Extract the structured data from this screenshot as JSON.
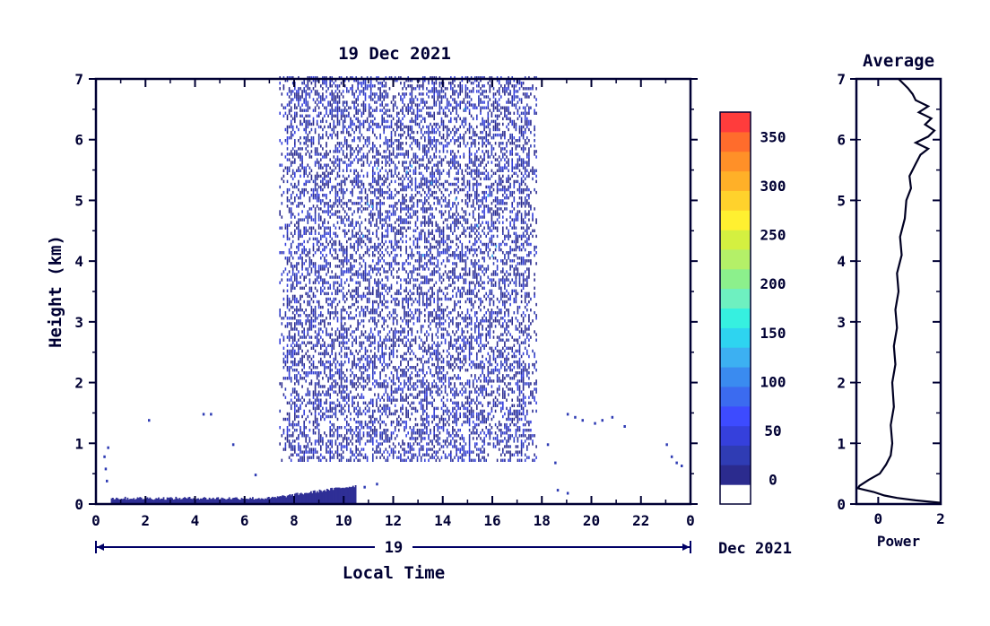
{
  "chart_data": [
    {
      "type": "heatmap",
      "title": "19 Dec 2021",
      "xlabel": "Local Time",
      "ylabel": "Height (km)",
      "xlim": [
        0,
        24
      ],
      "ylim": [
        0,
        7
      ],
      "x_ticks": [
        "0",
        "2",
        "4",
        "6",
        "8",
        "10",
        "12",
        "14",
        "16",
        "18",
        "20",
        "22",
        "0"
      ],
      "y_ticks": [
        "0",
        "1",
        "2",
        "3",
        "4",
        "5",
        "6",
        "7"
      ],
      "date_bar": {
        "day": "19",
        "month_year": "Dec 2021"
      },
      "colorbar": {
        "ticks": [
          "0",
          "50",
          "100",
          "150",
          "200",
          "250",
          "300",
          "350"
        ],
        "min": -25,
        "max": 375,
        "colors": [
          "#ffffff",
          "#2b2b8e",
          "#2f3cb4",
          "#3540dc",
          "#3d4bff",
          "#3b6bf0",
          "#3a8bf0",
          "#3cb0f2",
          "#2ed4f0",
          "#36f0e0",
          "#6ef0c0",
          "#8cf08c",
          "#b4f068",
          "#d4f040",
          "#fff030",
          "#ffd22c",
          "#ffb028",
          "#ff9028",
          "#ff6c2c",
          "#ff3c3c"
        ]
      },
      "regions": [
        {
          "desc": "daytime echo",
          "x_range": [
            7.4,
            17.8
          ],
          "y_range": [
            0.7,
            7.0
          ],
          "value_range": [
            0,
            30
          ]
        },
        {
          "desc": "surface layer",
          "x_range": [
            0.6,
            10.5
          ],
          "y_range": [
            0.0,
            0.25
          ],
          "value_range": [
            0,
            20
          ]
        }
      ]
    },
    {
      "type": "line",
      "title": "Average",
      "xlabel": "Power",
      "ylabel": "",
      "xlim": [
        -0.7,
        2
      ],
      "ylim": [
        0,
        7
      ],
      "x_ticks": [
        "0",
        "2"
      ],
      "y_ticks": [
        "0",
        "1",
        "2",
        "3",
        "4",
        "5",
        "6",
        "7"
      ],
      "series": [
        {
          "x": [
            2.0,
            1.2,
            0.6,
            0.2,
            -0.15,
            -0.5,
            -0.65,
            -0.6,
            -0.3,
            0.05,
            0.25,
            0.4,
            0.45,
            0.4,
            0.5,
            0.45,
            0.55,
            0.5,
            0.6,
            0.55,
            0.65,
            0.6,
            0.75,
            0.7,
            0.85,
            0.9,
            1.05,
            1.0,
            1.2,
            1.35,
            1.6,
            1.2,
            1.6,
            1.8,
            1.5,
            1.7,
            1.3,
            1.6,
            1.2,
            1.1,
            0.95,
            0.75,
            0.65
          ],
          "y": [
            0.02,
            0.06,
            0.1,
            0.14,
            0.2,
            0.24,
            0.26,
            0.3,
            0.4,
            0.5,
            0.65,
            0.8,
            1.0,
            1.3,
            1.6,
            2.0,
            2.3,
            2.6,
            2.9,
            3.2,
            3.5,
            3.8,
            4.1,
            4.4,
            4.7,
            5.0,
            5.2,
            5.4,
            5.6,
            5.75,
            5.85,
            5.95,
            6.05,
            6.15,
            6.25,
            6.35,
            6.45,
            6.55,
            6.65,
            6.75,
            6.85,
            6.95,
            7.0
          ]
        }
      ]
    }
  ]
}
